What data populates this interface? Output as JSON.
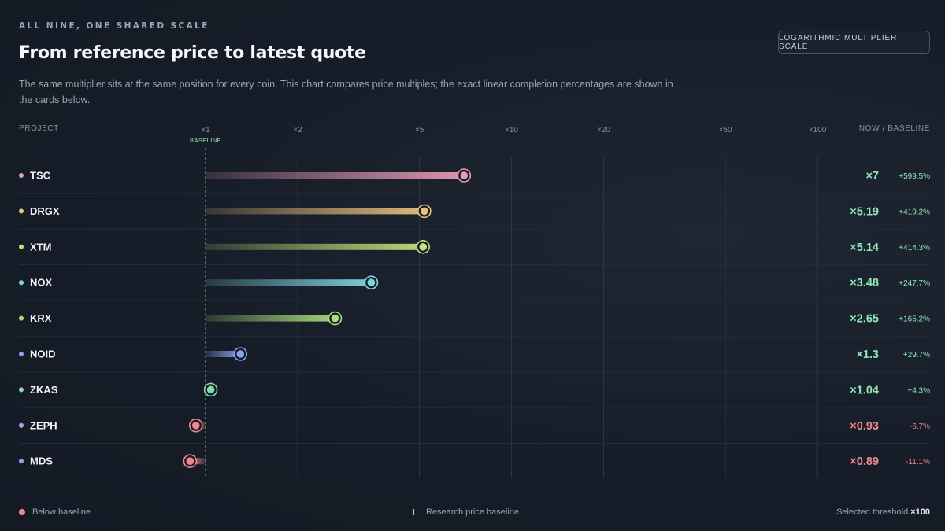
{
  "header": {
    "eyebrow": "ALL NINE, ONE SHARED SCALE",
    "title": "From reference price to latest quote",
    "subtitle": "The same multiplier sits at the same position for every coin. This chart compares price multiples; the exact linear completion percentages are shown in the cards below.",
    "scale_button": "LOGARITHMIC MULTIPLIER SCALE"
  },
  "columns": {
    "project": "PROJECT",
    "ratio": "NOW / BASELINE"
  },
  "colors": {
    "positive": "#8fe6b8",
    "negative": "#f0868e",
    "baseline": "#8fe6b8",
    "grid": "#2c3545"
  },
  "chart_data": {
    "type": "bar",
    "scale": "log",
    "ticks": [
      {
        "value": 1,
        "label": "×1"
      },
      {
        "value": 2,
        "label": "×2"
      },
      {
        "value": 5,
        "label": "×5"
      },
      {
        "value": 10,
        "label": "×10"
      },
      {
        "value": 20,
        "label": "×20"
      },
      {
        "value": 50,
        "label": "×50"
      },
      {
        "value": 100,
        "label": "×100"
      }
    ],
    "baseline": {
      "value": 1,
      "label": "BASELINE"
    },
    "rows": [
      {
        "name": "TSC",
        "multiplier": 7.0,
        "multiplier_label": "×7",
        "change": "+599.5%",
        "color": "#e59ab5"
      },
      {
        "name": "DRGX",
        "multiplier": 5.19,
        "multiplier_label": "×5.19",
        "change": "+419.2%",
        "color": "#e8c07d"
      },
      {
        "name": "XTM",
        "multiplier": 5.14,
        "multiplier_label": "×5.14",
        "change": "+414.3%",
        "color": "#c5e07a"
      },
      {
        "name": "NOX",
        "multiplier": 3.48,
        "multiplier_label": "×3.48",
        "change": "+247.7%",
        "color": "#7fd6e0"
      },
      {
        "name": "KRX",
        "multiplier": 2.65,
        "multiplier_label": "×2.65",
        "change": "+165.2%",
        "color": "#a9dc7e"
      },
      {
        "name": "NOID",
        "multiplier": 1.3,
        "multiplier_label": "×1.3",
        "change": "+29.7%",
        "color": "#8aa2f0"
      },
      {
        "name": "ZKAS",
        "multiplier": 1.04,
        "multiplier_label": "×1.04",
        "change": "+4.3%",
        "color": "#86dca8"
      },
      {
        "name": "ZEPH",
        "multiplier": 0.93,
        "multiplier_label": "×0.93",
        "change": "-6.7%",
        "color": "#b59cf0"
      },
      {
        "name": "MDS",
        "multiplier": 0.89,
        "multiplier_label": "×0.89",
        "change": "-11.1%",
        "color": "#9c9cf0"
      }
    ]
  },
  "legend": {
    "below_baseline": "Below baseline",
    "research_baseline": "Research price baseline",
    "threshold_label": "Selected threshold",
    "threshold_value": "×100"
  }
}
